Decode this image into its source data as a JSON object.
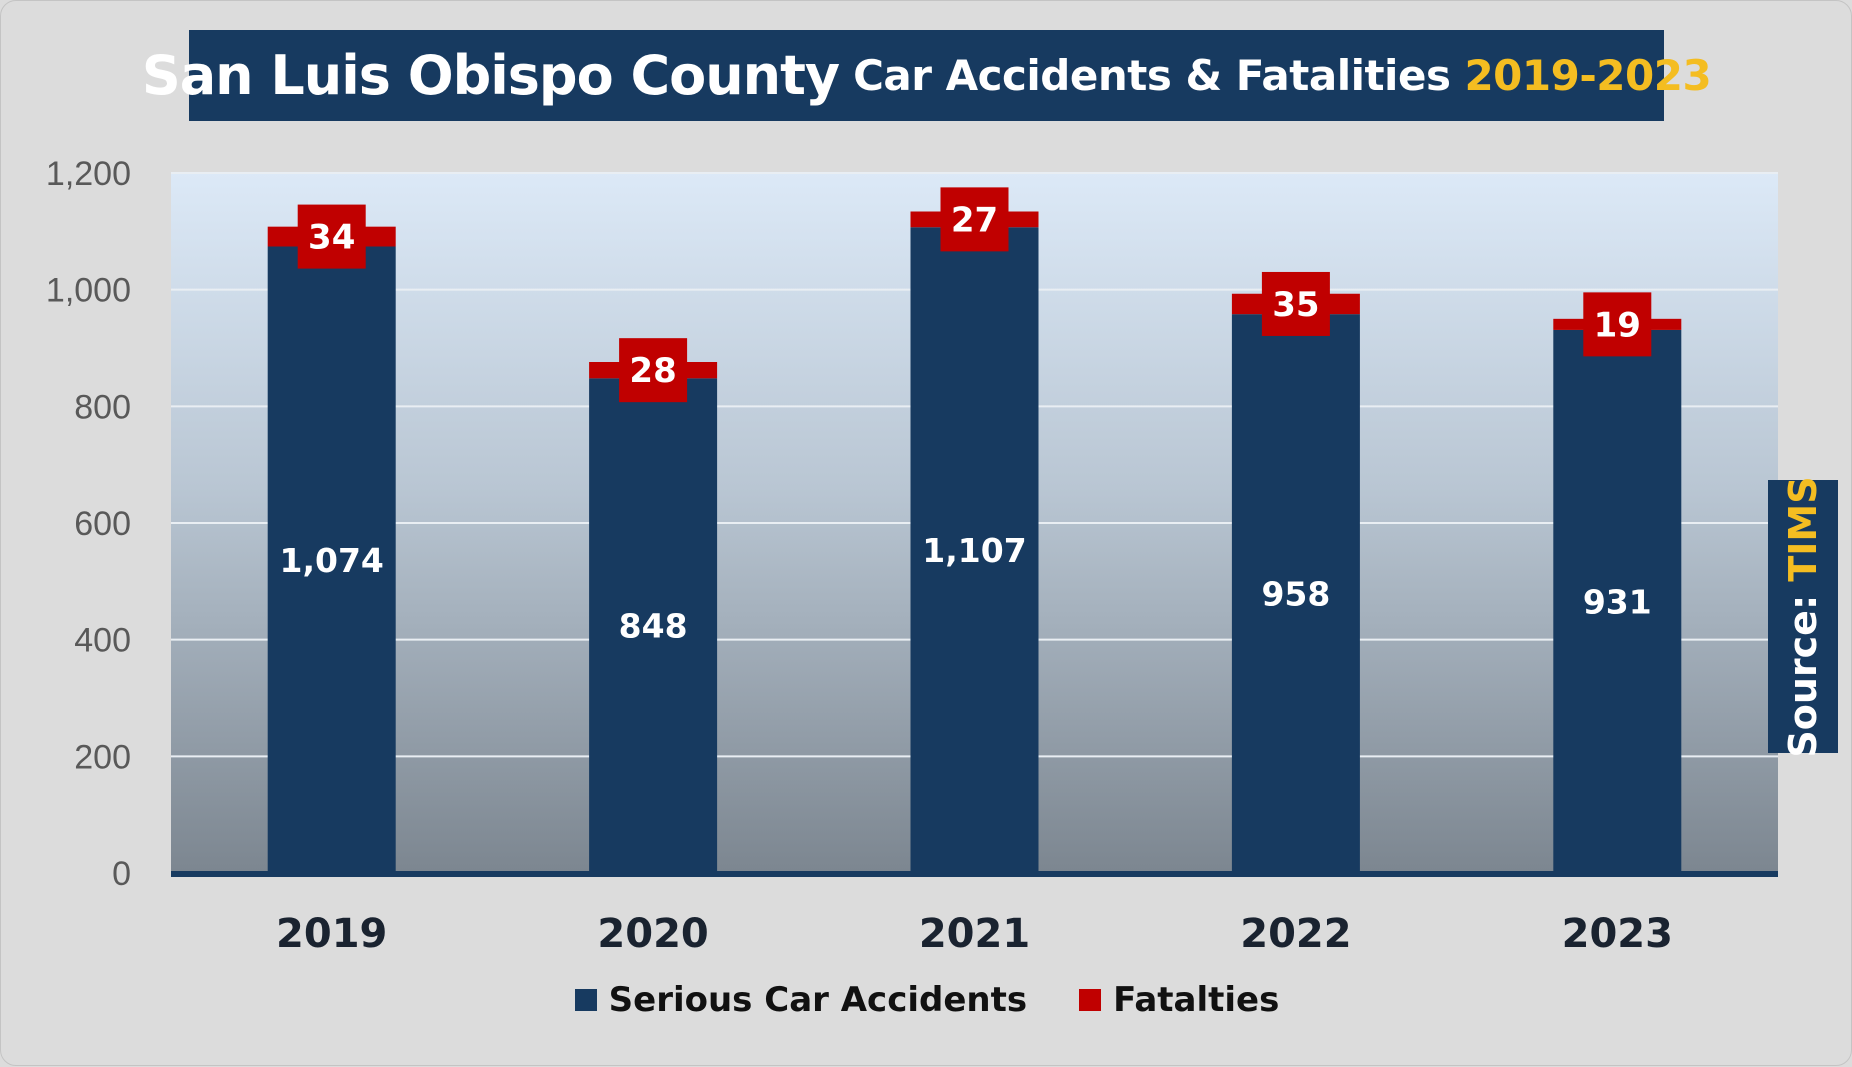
{
  "title": {
    "part1": "San Luis Obispo County",
    "part2": "Car Accidents & Fatalities",
    "part3": "2019-2023"
  },
  "source": {
    "label": "Source: ",
    "value": "TIMS"
  },
  "colors": {
    "accidents": "#173a60",
    "fatalities": "#c00000",
    "accent": "#f4bd21"
  },
  "legend": [
    {
      "label": "Serious Car Accidents",
      "color": "#173a60"
    },
    {
      "label": "Fatalties",
      "color": "#c00000"
    }
  ],
  "chart_data": {
    "type": "bar",
    "stacked": true,
    "title": "San Luis Obispo County Car Accidents & Fatalities 2019-2023",
    "categories": [
      "2019",
      "2020",
      "2021",
      "2022",
      "2023"
    ],
    "series": [
      {
        "name": "Serious Car Accidents",
        "values": [
          1074,
          848,
          1107,
          958,
          931
        ],
        "labels": [
          "1,074",
          "848",
          "1,107",
          "958",
          "931"
        ]
      },
      {
        "name": "Fatalties",
        "values": [
          34,
          28,
          27,
          35,
          19
        ],
        "labels": [
          "34",
          "28",
          "27",
          "35",
          "19"
        ]
      }
    ],
    "yticks": [
      0,
      200,
      400,
      600,
      800,
      1000,
      1200
    ],
    "ytick_labels": [
      "0",
      "200",
      "400",
      "600",
      "800",
      "1,000",
      "1,200"
    ],
    "ylim": [
      0,
      1200
    ],
    "grid": true,
    "legend_position": "bottom"
  }
}
